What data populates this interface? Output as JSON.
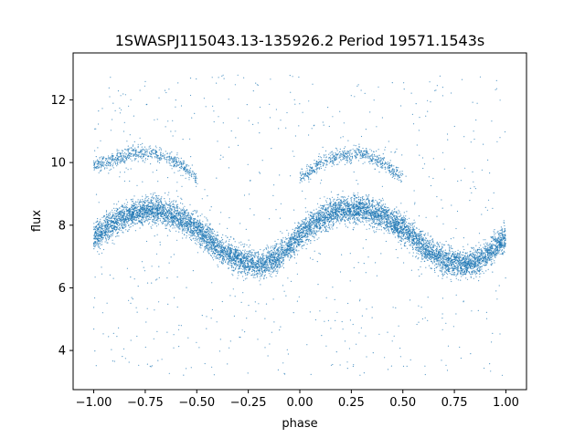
{
  "chart_data": {
    "type": "scatter",
    "title": "1SWASPJ115043.13-135926.2 Period 19571.1543s",
    "xlabel": "phase",
    "ylabel": "flux",
    "xlim": [
      -1.1,
      1.1
    ],
    "ylim": [
      2.75,
      13.5
    ],
    "x_ticks": [
      -1.0,
      -0.75,
      -0.5,
      -0.25,
      0.0,
      0.25,
      0.5,
      0.75,
      1.0
    ],
    "x_tick_labels": [
      "−1.00",
      "−0.75",
      "−0.50",
      "−0.25",
      "0.00",
      "0.25",
      "0.50",
      "0.75",
      "1.00"
    ],
    "y_ticks": [
      4,
      6,
      8,
      10,
      12
    ],
    "y_tick_labels": [
      "4",
      "6",
      "8",
      "10",
      "12"
    ],
    "grid": false,
    "marker_color": "#1f77b4",
    "series": [
      {
        "phase": [
          -1.0,
          -0.9,
          -0.8,
          -0.7,
          -0.6,
          -0.5,
          -0.4,
          -0.3,
          -0.2,
          -0.1,
          0.0,
          0.1,
          0.2,
          0.3,
          0.4,
          0.5,
          0.6,
          0.7,
          0.8,
          0.9,
          1.0
        ],
        "flux_main_band": [
          7.6,
          8.1,
          8.4,
          8.5,
          8.3,
          7.9,
          7.3,
          6.9,
          6.7,
          7.0,
          7.7,
          8.2,
          8.5,
          8.5,
          8.3,
          7.9,
          7.3,
          6.9,
          6.7,
          7.0,
          7.6
        ],
        "flux_upper_band": [
          9.9,
          10.1,
          10.3,
          10.3,
          10.0,
          9.5,
          null,
          null,
          null,
          null,
          9.5,
          10.0,
          10.2,
          10.3,
          10.0,
          9.5,
          null,
          null,
          null,
          null,
          9.9
        ],
        "main_band_spread": 0.55,
        "upper_band_spread": 0.3
      }
    ]
  }
}
